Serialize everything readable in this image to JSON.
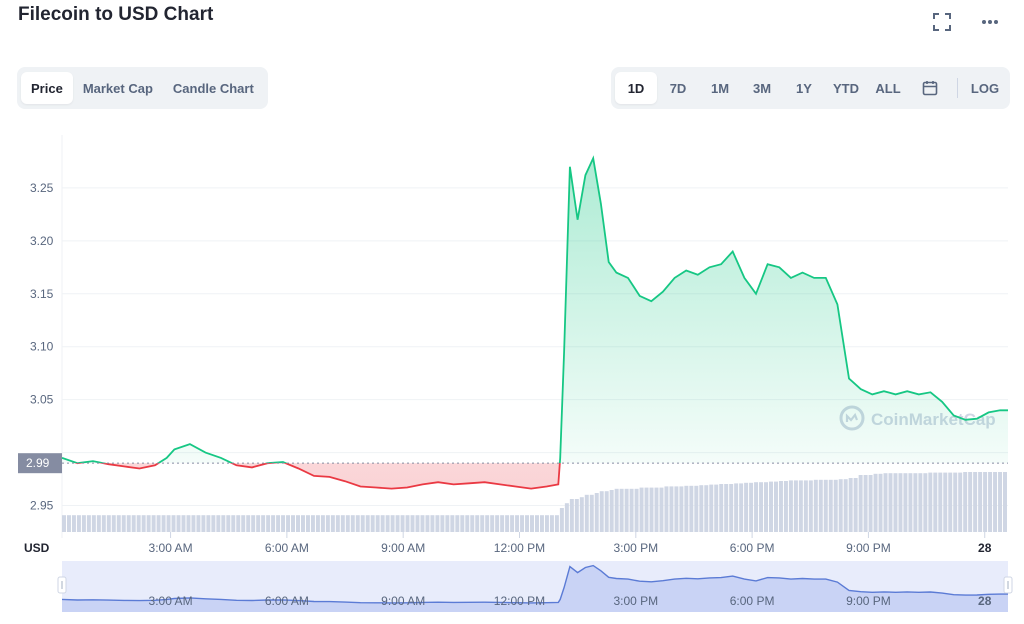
{
  "header": {
    "title": "Filecoin to USD Chart",
    "fullscreen_icon": "fullscreen-icon",
    "more_icon": "more-horizontal-icon"
  },
  "chart_tabs": [
    {
      "label": "Price",
      "active": true
    },
    {
      "label": "Market Cap",
      "active": false
    },
    {
      "label": "Candle Chart",
      "active": false
    }
  ],
  "range_buttons": [
    {
      "label": "1D",
      "active": true
    },
    {
      "label": "7D",
      "active": false
    },
    {
      "label": "1M",
      "active": false
    },
    {
      "label": "3M",
      "active": false
    },
    {
      "label": "1Y",
      "active": false
    },
    {
      "label": "YTD",
      "active": false
    },
    {
      "label": "ALL",
      "active": false
    }
  ],
  "calendar_icon": "calendar-icon",
  "log_label": "LOG",
  "watermark": "CoinMarketCap",
  "colors": {
    "up": "#16c784",
    "down": "#ea3943",
    "volume": "#cfd6e4",
    "navigator": "#5b7bd5",
    "reference": "#858ca2"
  },
  "chart_data": {
    "type": "line",
    "currency_label": "USD",
    "x_tick_labels": [
      "3:00 AM",
      "6:00 AM",
      "9:00 AM",
      "12:00 PM",
      "3:00 PM",
      "6:00 PM",
      "9:00 PM",
      "28"
    ],
    "x_range_hours": [
      0.2,
      24.6
    ],
    "ylim": [
      2.925,
      3.3
    ],
    "y_ticks": [
      2.95,
      3.0,
      3.05,
      3.1,
      3.15,
      3.2,
      3.25
    ],
    "y_tick_labels": [
      "2.95",
      "",
      "3.05",
      "3.10",
      "3.15",
      "3.20",
      "3.25"
    ],
    "reference_price": 2.99,
    "reference_label": "2.99",
    "series": [
      {
        "x": [
          0.2,
          0.6,
          1.0,
          1.4,
          1.8,
          2.2,
          2.6,
          2.9,
          3.1,
          3.5,
          3.9,
          4.3,
          4.7,
          5.1,
          5.5,
          5.9,
          6.3,
          6.7,
          7.1,
          7.5,
          7.9,
          8.3,
          8.7,
          9.1,
          9.5,
          9.9,
          10.3,
          10.7,
          11.1,
          11.5,
          11.9,
          12.3,
          12.7,
          13.0,
          13.05,
          13.15,
          13.3,
          13.5,
          13.7,
          13.9,
          14.1,
          14.3,
          14.5,
          14.8,
          15.1,
          15.4,
          15.7,
          16.0,
          16.3,
          16.6,
          16.9,
          17.2,
          17.5,
          17.8,
          18.1,
          18.4,
          18.7,
          19.0,
          19.3,
          19.6,
          19.9,
          20.2,
          20.5,
          20.8,
          21.1,
          21.4,
          21.7,
          22.0,
          22.3,
          22.6,
          22.9,
          23.2,
          23.5,
          23.8,
          24.1,
          24.4,
          24.6
        ],
        "y": [
          2.995,
          2.99,
          2.992,
          2.989,
          2.987,
          2.985,
          2.988,
          2.995,
          3.003,
          3.008,
          3.0,
          2.995,
          2.988,
          2.986,
          2.99,
          2.991,
          2.985,
          2.978,
          2.977,
          2.973,
          2.968,
          2.967,
          2.966,
          2.967,
          2.97,
          2.972,
          2.97,
          2.971,
          2.972,
          2.97,
          2.968,
          2.966,
          2.968,
          2.97,
          2.995,
          3.095,
          3.27,
          3.22,
          3.262,
          3.278,
          3.235,
          3.18,
          3.17,
          3.165,
          3.148,
          3.143,
          3.152,
          3.165,
          3.172,
          3.168,
          3.175,
          3.178,
          3.19,
          3.165,
          3.15,
          3.178,
          3.175,
          3.165,
          3.17,
          3.165,
          3.165,
          3.14,
          3.07,
          3.06,
          3.055,
          3.058,
          3.055,
          3.058,
          3.055,
          3.057,
          3.048,
          3.035,
          3.031,
          3.032,
          3.038,
          3.04,
          3.04
        ],
        "color_above_ref": "#16c784",
        "color_below_ref": "#ea3943"
      }
    ],
    "volume_relative": [
      0.28,
      0.28,
      0.28,
      0.28,
      0.28,
      0.28,
      0.28,
      0.28,
      0.28,
      0.28,
      0.28,
      0.28,
      0.28,
      0.28,
      0.28,
      0.28,
      0.28,
      0.28,
      0.28,
      0.28,
      0.28,
      0.28,
      0.28,
      0.28,
      0.28,
      0.28,
      0.28,
      0.28,
      0.28,
      0.28,
      0.28,
      0.28,
      0.28,
      0.3,
      0.4,
      0.48,
      0.55,
      0.58,
      0.62,
      0.65,
      0.68,
      0.7,
      0.72,
      0.72,
      0.74,
      0.74,
      0.76,
      0.76,
      0.77,
      0.78,
      0.79,
      0.8,
      0.81,
      0.82,
      0.83,
      0.84,
      0.85,
      0.86,
      0.86,
      0.87,
      0.87,
      0.88,
      0.9,
      0.95,
      0.97,
      0.98,
      0.98,
      0.98,
      0.98,
      0.99,
      0.99,
      0.99,
      1.0,
      1.0,
      1.0,
      1.0,
      1.0
    ],
    "navigator": {
      "x_tick_labels": [
        "3:00 AM",
        "6:00 AM",
        "9:00 AM",
        "12:00 PM",
        "3:00 PM",
        "6:00 PM",
        "9:00 PM",
        "28"
      ]
    }
  }
}
